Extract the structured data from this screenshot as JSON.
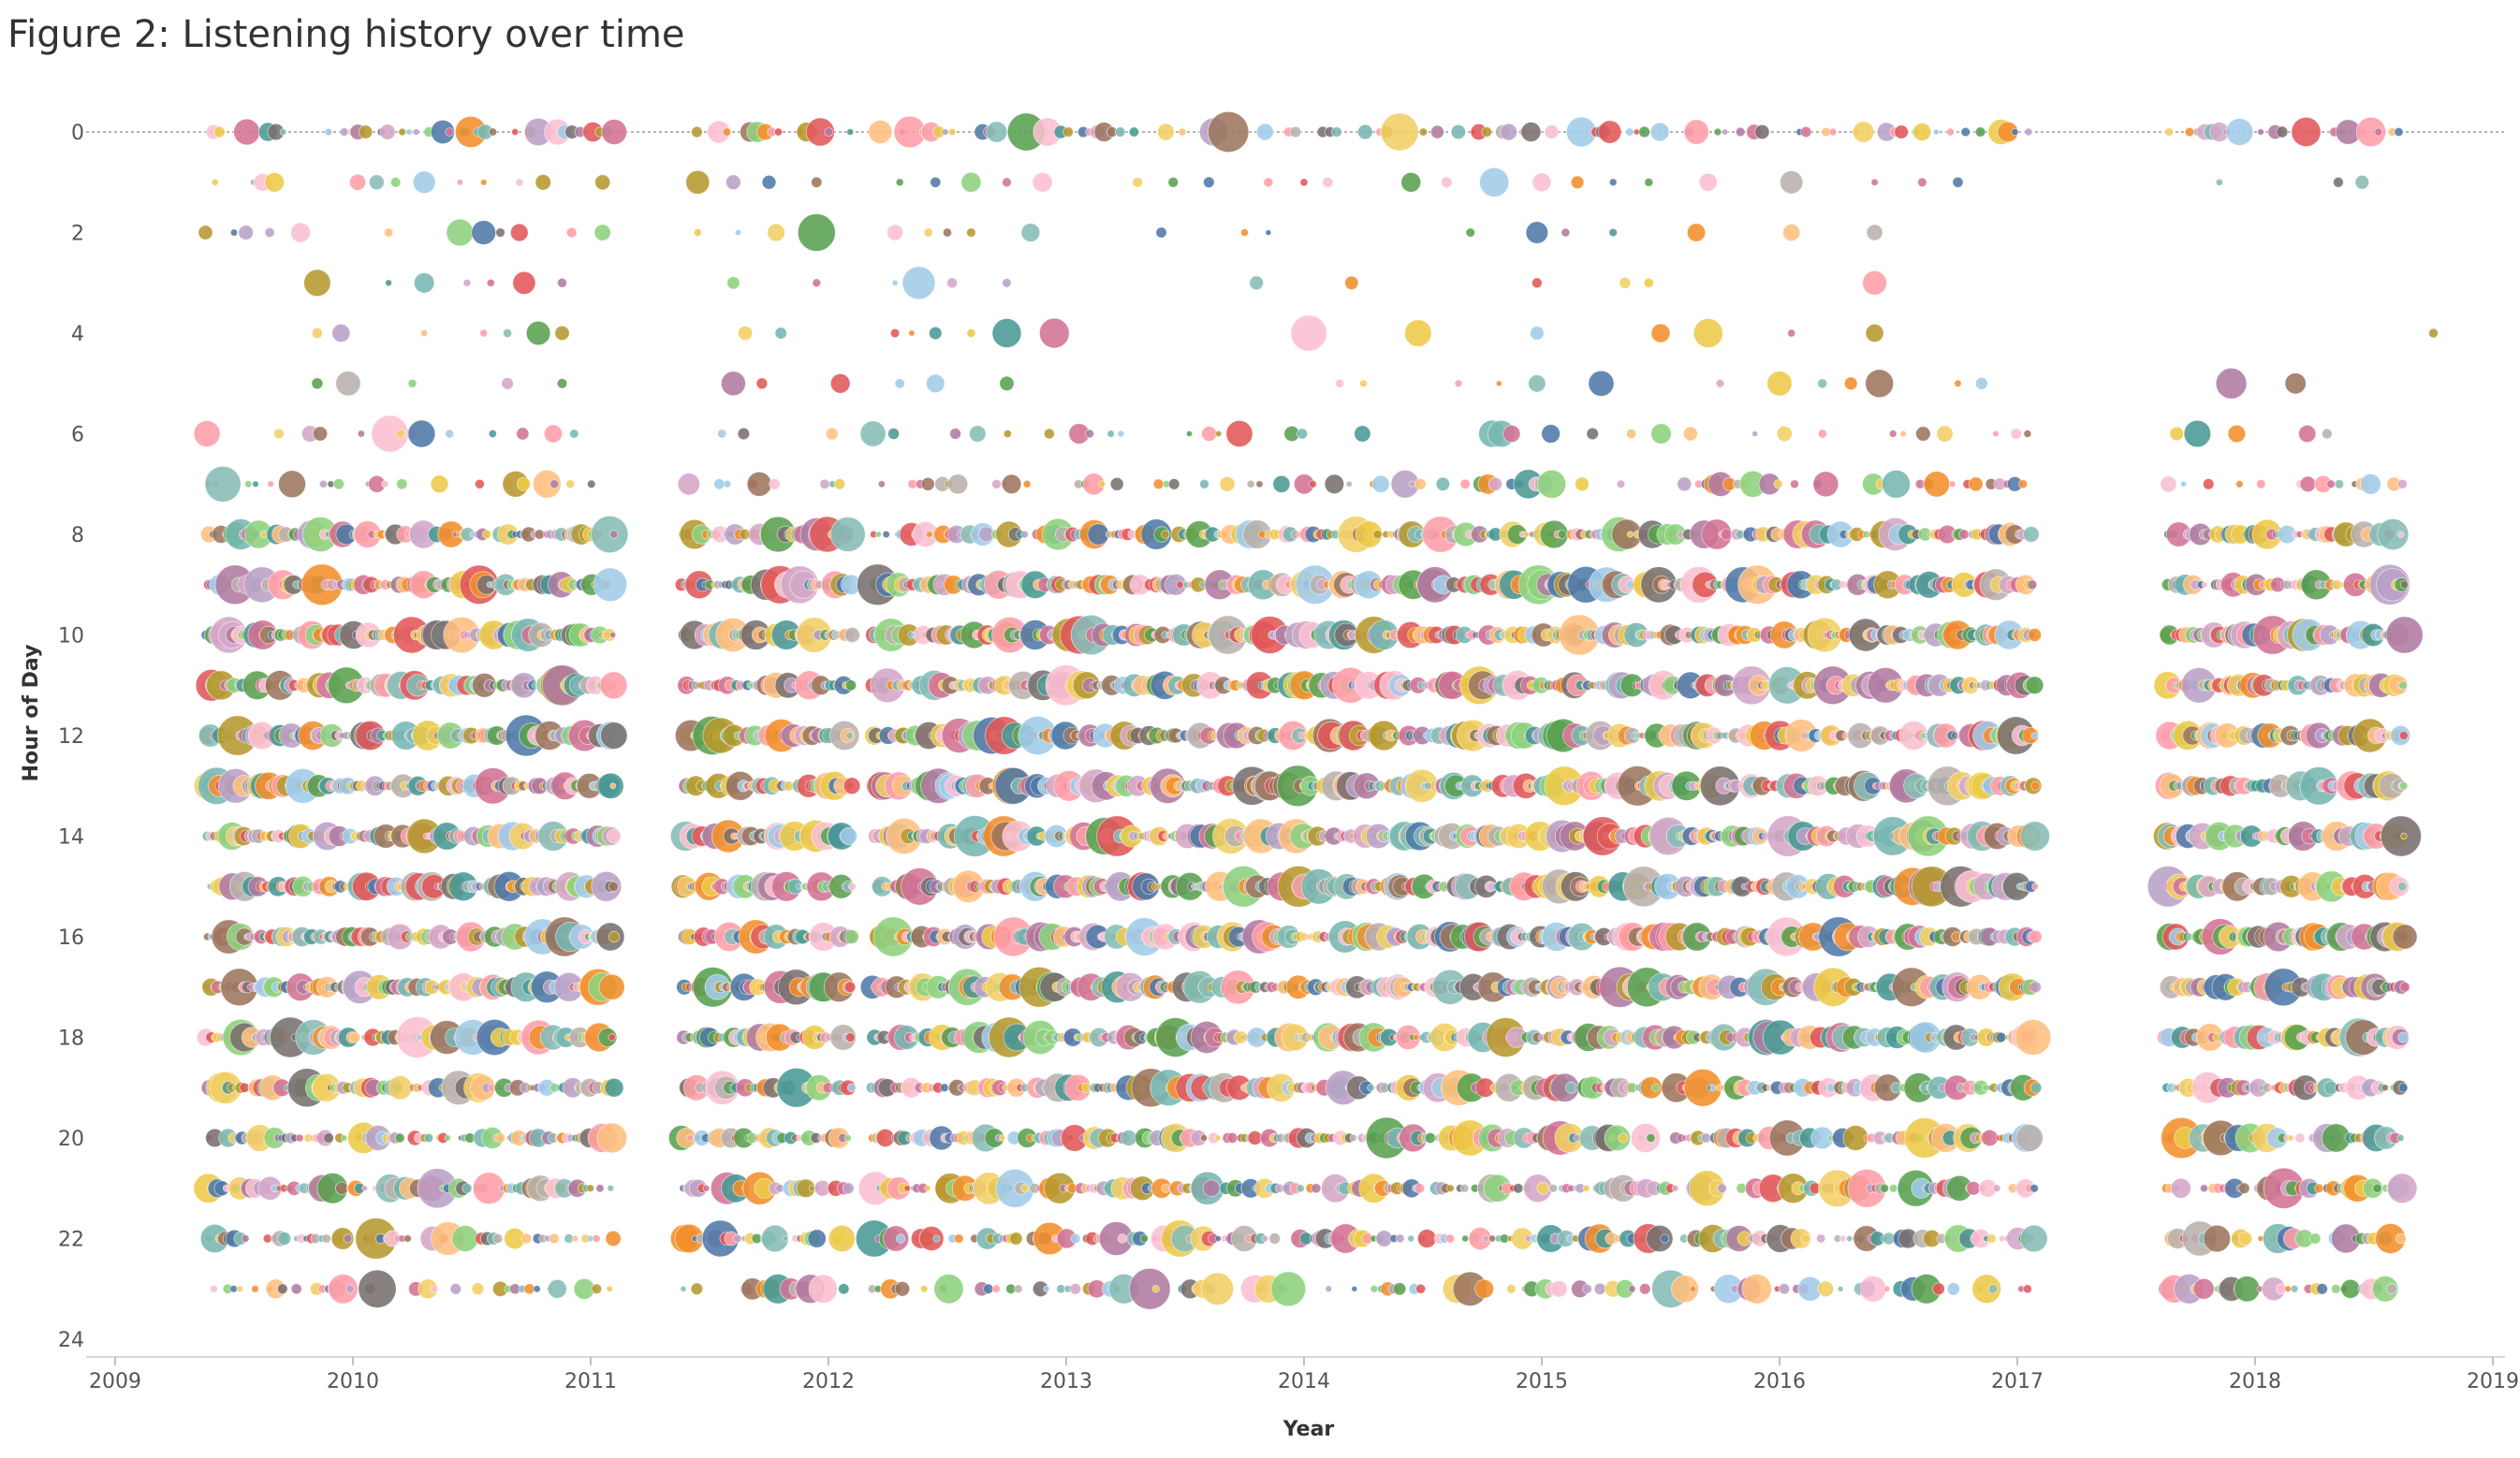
{
  "chart_data": {
    "type": "scatter",
    "title": "Figure 2: Listening history over time",
    "xlabel": "Year",
    "ylabel": "Hour of Day",
    "xlim": [
      2009,
      2019
    ],
    "ylim": [
      0,
      24
    ],
    "y_inverted": true,
    "x_ticks": [
      "2009",
      "2010",
      "2011",
      "2012",
      "2013",
      "2014",
      "2015",
      "2016",
      "2017",
      "2018",
      "2019"
    ],
    "y_ticks": [
      "0",
      "2",
      "4",
      "6",
      "8",
      "10",
      "12",
      "14",
      "16",
      "18",
      "20",
      "22",
      "24"
    ],
    "grid": false,
    "reference_line": {
      "y": 0,
      "style": "dotted"
    },
    "legend": "none",
    "palette": [
      "#4e79a7",
      "#f28e2b",
      "#e15759",
      "#76b7b2",
      "#59a14f",
      "#edc948",
      "#b07aa1",
      "#ff9da7",
      "#9c755f",
      "#bab0ac",
      "#a0cbe8",
      "#ffbe7d",
      "#8cd17d",
      "#b6992d",
      "#f1ce63",
      "#86bcb6",
      "#d37295",
      "#fabfd2",
      "#79706e",
      "#d4a6c8",
      "#499894",
      "#b9a0c7"
    ],
    "periods": [
      [
        2009.38,
        2011.1
      ],
      [
        2011.38,
        2012.1
      ],
      [
        2012.18,
        2017.08
      ],
      [
        2017.62,
        2018.63
      ]
    ],
    "hour_density": [
      0.55,
      0.35,
      0.3,
      0.18,
      0.12,
      0.12,
      0.25,
      0.5,
      0.85,
      0.95,
      1.0,
      1.0,
      1.0,
      1.0,
      1.0,
      1.0,
      1.0,
      1.0,
      0.95,
      0.9,
      0.85,
      0.8,
      0.75,
      0.6
    ],
    "sparse_hours": {
      "1": [
        2009.42,
        2009.58,
        2009.62,
        2009.67,
        2010.02,
        2010.1,
        2010.18,
        2010.3,
        2010.45,
        2010.55,
        2010.7,
        2010.8,
        2011.05,
        2011.45,
        2011.6,
        2011.75,
        2011.95,
        2012.3,
        2012.45,
        2012.6,
        2012.75,
        2012.9,
        2013.3,
        2013.45,
        2013.6,
        2013.85,
        2014.0,
        2014.1,
        2014.45,
        2014.6,
        2014.8,
        2015.0,
        2015.15,
        2015.3,
        2015.45,
        2015.7,
        2016.05,
        2016.4,
        2016.6,
        2016.75,
        2017.85,
        2018.35,
        2018.45
      ],
      "2": [
        2009.38,
        2009.5,
        2009.55,
        2009.65,
        2009.78,
        2010.15,
        2010.45,
        2010.55,
        2010.62,
        2010.7,
        2010.92,
        2011.05,
        2011.45,
        2011.62,
        2011.78,
        2011.95,
        2012.28,
        2012.42,
        2012.5,
        2012.6,
        2012.85,
        2013.4,
        2013.75,
        2013.85,
        2014.7,
        2014.98,
        2015.1,
        2015.3,
        2015.65,
        2016.05,
        2016.4
      ],
      "3": [
        2009.85,
        2010.15,
        2010.3,
        2010.48,
        2010.58,
        2010.72,
        2010.88,
        2011.6,
        2011.95,
        2012.28,
        2012.38,
        2012.52,
        2012.75,
        2013.8,
        2014.2,
        2014.98,
        2015.35,
        2015.45,
        2016.4
      ],
      "4": [
        2009.85,
        2009.95,
        2010.3,
        2010.55,
        2010.65,
        2010.78,
        2010.88,
        2011.65,
        2011.8,
        2012.28,
        2012.35,
        2012.45,
        2012.6,
        2012.75,
        2012.95,
        2014.02,
        2014.48,
        2014.98,
        2015.5,
        2015.7,
        2016.05,
        2016.4,
        2018.75
      ],
      "5": [
        2009.85,
        2009.98,
        2010.25,
        2010.65,
        2010.88,
        2011.6,
        2011.72,
        2012.05,
        2012.3,
        2012.45,
        2012.75,
        2014.15,
        2014.25,
        2014.65,
        2014.82,
        2014.98,
        2015.25,
        2015.75,
        2016.0,
        2016.18,
        2016.3,
        2016.42,
        2016.75,
        2016.85,
        2017.9,
        2018.17
      ]
    },
    "marker": "circle (size varies by listening volume)"
  }
}
